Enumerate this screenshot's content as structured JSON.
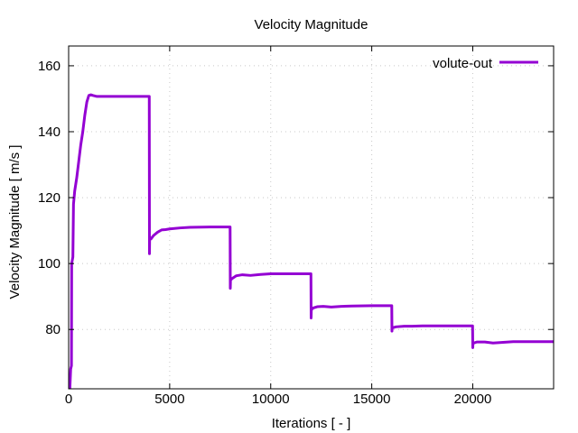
{
  "chart_data": {
    "type": "line",
    "title": "Velocity Magnitude",
    "xlabel": "Iterations [ - ]",
    "ylabel": "Velocity Magnitude [ m/s ]",
    "xlim": [
      0,
      24000
    ],
    "ylim": [
      62,
      166
    ],
    "xticks": [
      0,
      5000,
      10000,
      15000,
      20000
    ],
    "xtick_labels": [
      "0",
      "5000",
      "10000",
      "15000",
      "20000"
    ],
    "yticks": [
      80,
      100,
      120,
      140,
      160
    ],
    "ytick_labels": [
      "80",
      "100",
      "120",
      "140",
      "160"
    ],
    "grid": true,
    "legend_position": "top-right",
    "series": [
      {
        "name": "volute-out",
        "color": "#9400d3",
        "x": [
          0,
          60,
          100,
          140,
          150,
          180,
          210,
          240,
          300,
          400,
          500,
          600,
          700,
          800,
          900,
          1000,
          1100,
          1200,
          1400,
          1600,
          2000,
          3000,
          3990,
          4000,
          4010,
          4080,
          4200,
          4400,
          4600,
          4800,
          5000,
          5500,
          6000,
          7000,
          7990,
          8000,
          8010,
          8100,
          8300,
          8600,
          9000,
          9500,
          10000,
          11000,
          11990,
          12000,
          12010,
          12100,
          12300,
          12600,
          13000,
          13500,
          14000,
          15000,
          15990,
          16000,
          16010,
          16200,
          16600,
          17000,
          17500,
          18000,
          19000,
          19990,
          20000,
          20010,
          20200,
          20600,
          21000,
          21500,
          22000,
          23000,
          24000
        ],
        "y": [
          62,
          62,
          68,
          69,
          100,
          101,
          102,
          118,
          122,
          126,
          131,
          136,
          140,
          145,
          149,
          151,
          151.2,
          151,
          150.7,
          150.7,
          150.7,
          150.7,
          150.7,
          103,
          108,
          107.5,
          108.5,
          109.5,
          110.2,
          110.3,
          110.5,
          110.8,
          111,
          111.1,
          111.1,
          92.5,
          95,
          95.5,
          96.3,
          96.6,
          96.4,
          96.7,
          96.9,
          96.9,
          96.9,
          83.5,
          86,
          86.5,
          86.9,
          87,
          86.8,
          87,
          87.1,
          87.2,
          87.2,
          79.5,
          80.5,
          80.8,
          81,
          81,
          81.1,
          81.1,
          81.1,
          81.1,
          74.5,
          75.8,
          76.2,
          76.2,
          75.9,
          76.1,
          76.3,
          76.3,
          76.3
        ]
      }
    ]
  }
}
